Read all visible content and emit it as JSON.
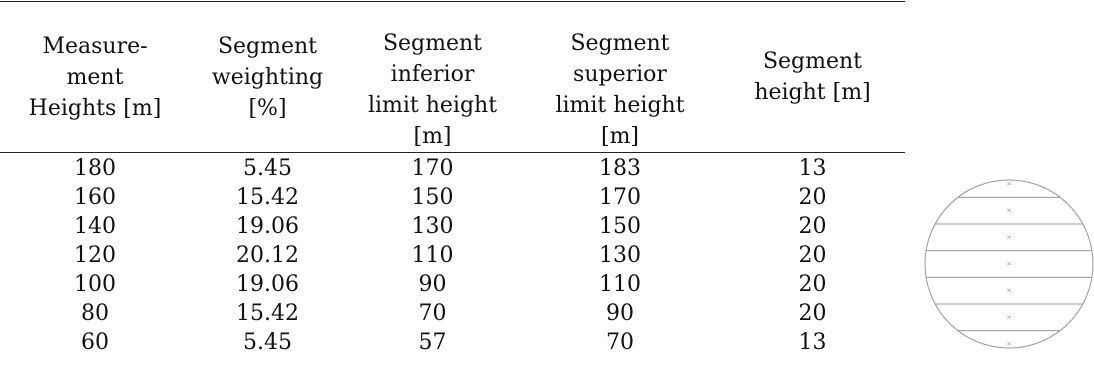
{
  "table": {
    "headers": [
      "Measure-\nment\nHeights [m]",
      "Segment\nweighting\n[%]",
      "Segment\ninferior\nlimit height\n[m]",
      "Segment\nsuperior\nlimit height\n[m]",
      "Segment\nheight [m]"
    ],
    "rows": [
      [
        "180",
        "5.45",
        "170",
        "183",
        "13"
      ],
      [
        "160",
        "15.42",
        "150",
        "170",
        "20"
      ],
      [
        "140",
        "19.06",
        "130",
        "150",
        "20"
      ],
      [
        "120",
        "20.12",
        "110",
        "130",
        "20"
      ],
      [
        "100",
        "19.06",
        "90",
        "110",
        "20"
      ],
      [
        "80",
        "15.42",
        "70",
        "90",
        "20"
      ],
      [
        "60",
        "5.45",
        "57",
        "70",
        "13"
      ]
    ]
  },
  "diagram": {
    "segment_marker": "×",
    "segment_count": 7,
    "colors": {
      "outline": "#9a9a9a",
      "marker": "#9a9a9a",
      "text": "#111111"
    }
  }
}
